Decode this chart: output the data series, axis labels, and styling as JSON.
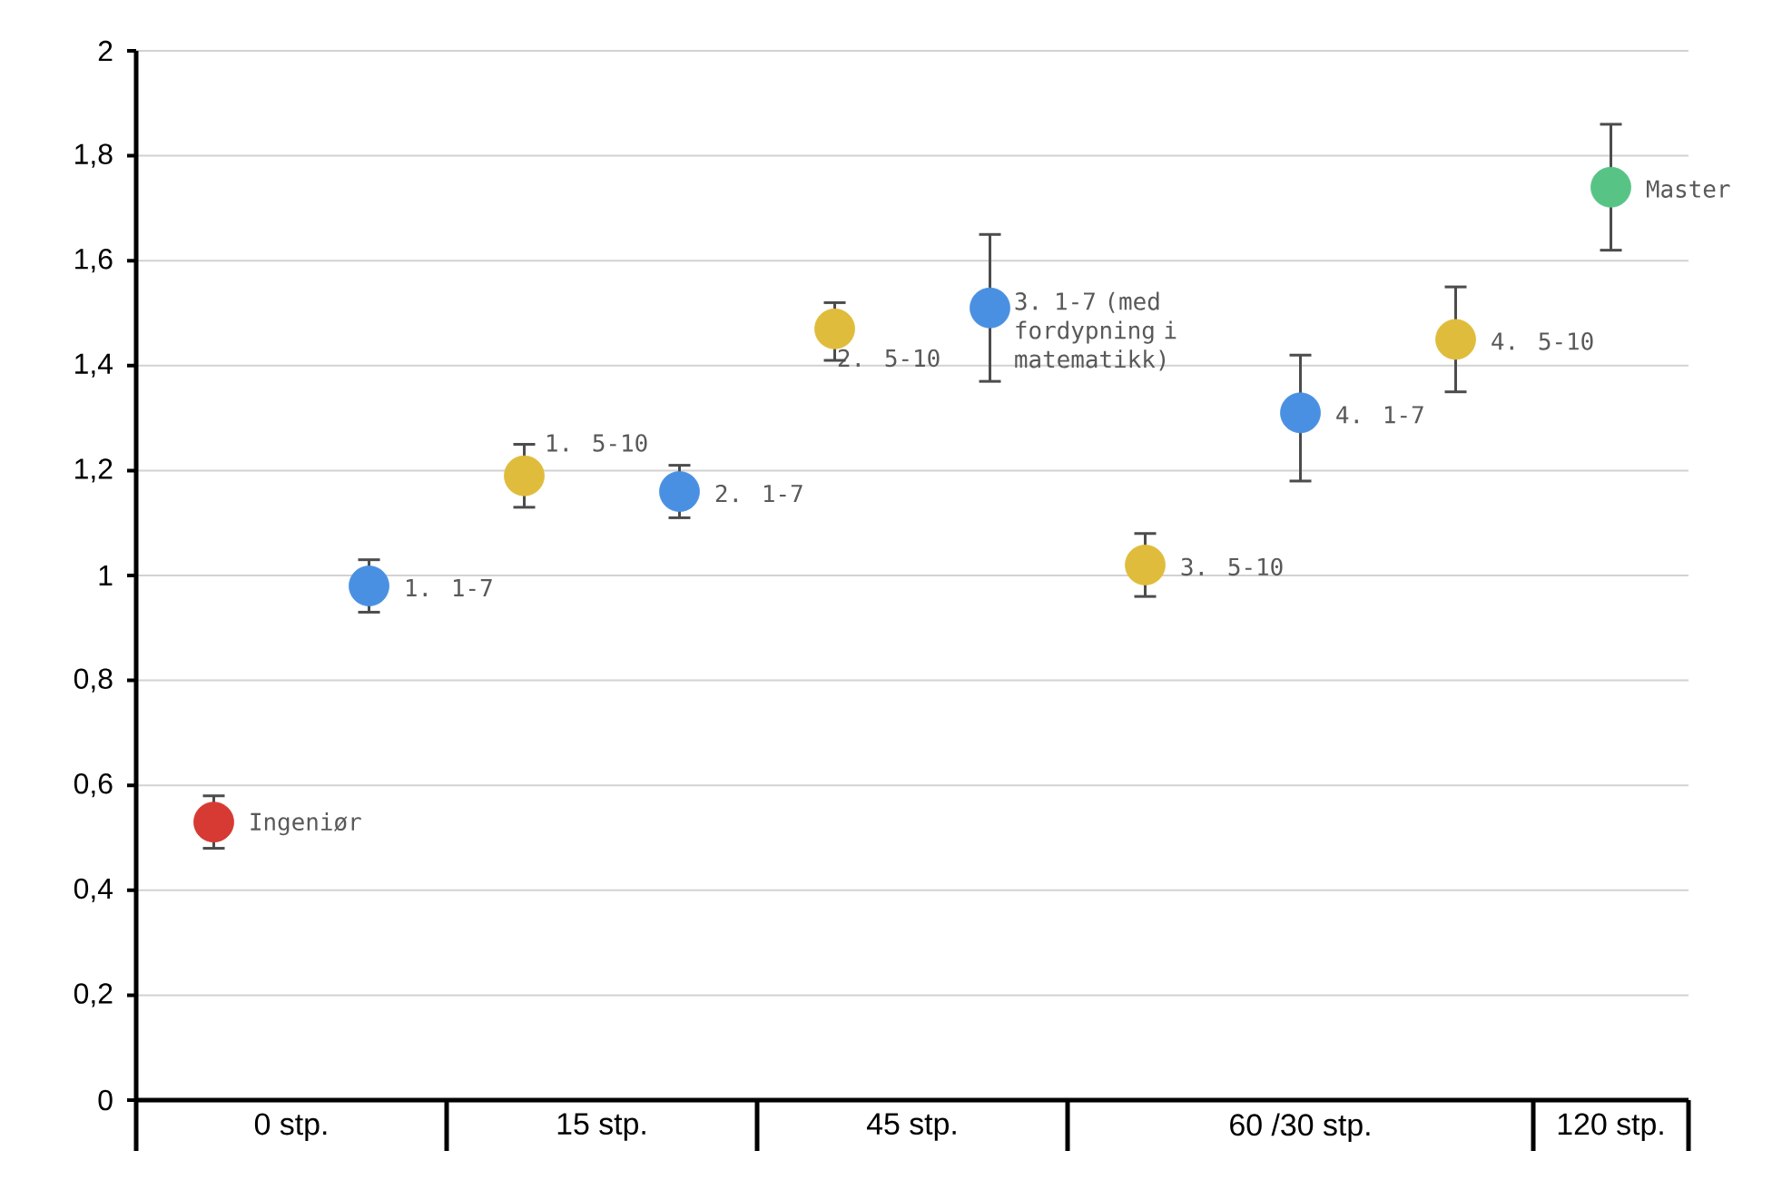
{
  "chart_data": {
    "type": "scatter",
    "categories": [
      null,
      null,
      null,
      null,
      null,
      null,
      null,
      null,
      null,
      null
    ],
    "values": [
      0.53,
      0.98,
      1.19,
      1.16,
      1.47,
      1.51,
      1.02,
      1.31,
      1.45,
      1.74
    ],
    "errors": [
      [
        0.48,
        0.58
      ],
      [
        0.93,
        1.03
      ],
      [
        1.13,
        1.25
      ],
      [
        1.11,
        1.21
      ],
      [
        1.41,
        1.52
      ],
      [
        1.37,
        1.65
      ],
      [
        0.96,
        1.08
      ],
      [
        1.18,
        1.42
      ],
      [
        1.35,
        1.55
      ],
      [
        1.62,
        1.86
      ]
    ],
    "colors": [
      "#d63a32",
      "#4a90e2",
      "#e0bc3c",
      "#4a90e2",
      "#e0bc3c",
      "#4a90e2",
      "#e0bc3c",
      "#4a90e2",
      "#e0bc3c",
      "#57c486"
    ],
    "ylim": [
      0,
      2
    ],
    "yticks": [
      0,
      {
        "value": 0.2,
        "label": "0,2"
      },
      {
        "value": 0.4,
        "label": "0,4"
      },
      {
        "value": 0.6,
        "label": "0,6"
      },
      {
        "value": 0.8,
        "label": "0,8"
      },
      1,
      {
        "value": 1.2,
        "label": "1,2"
      },
      {
        "value": 1.4,
        "label": "1,4"
      },
      {
        "value": 1.6,
        "label": "1,6"
      },
      {
        "value": 1.8,
        "label": "1,8"
      },
      2
    ],
    "grid": "y",
    "annotations": [
      "Ingeniør",
      "1. 1-7",
      "1. 5-10",
      "2. 1-7",
      "2. 5-10",
      "3. 1-7 (med fordypning i matematikk)",
      "3. 5-10",
      "4. 1-7",
      "4. 5-10",
      "Master",
      "0 stp.",
      "15 stp.",
      "45 stp.",
      "60 /30 stp.",
      "120 stp."
    ]
  }
}
